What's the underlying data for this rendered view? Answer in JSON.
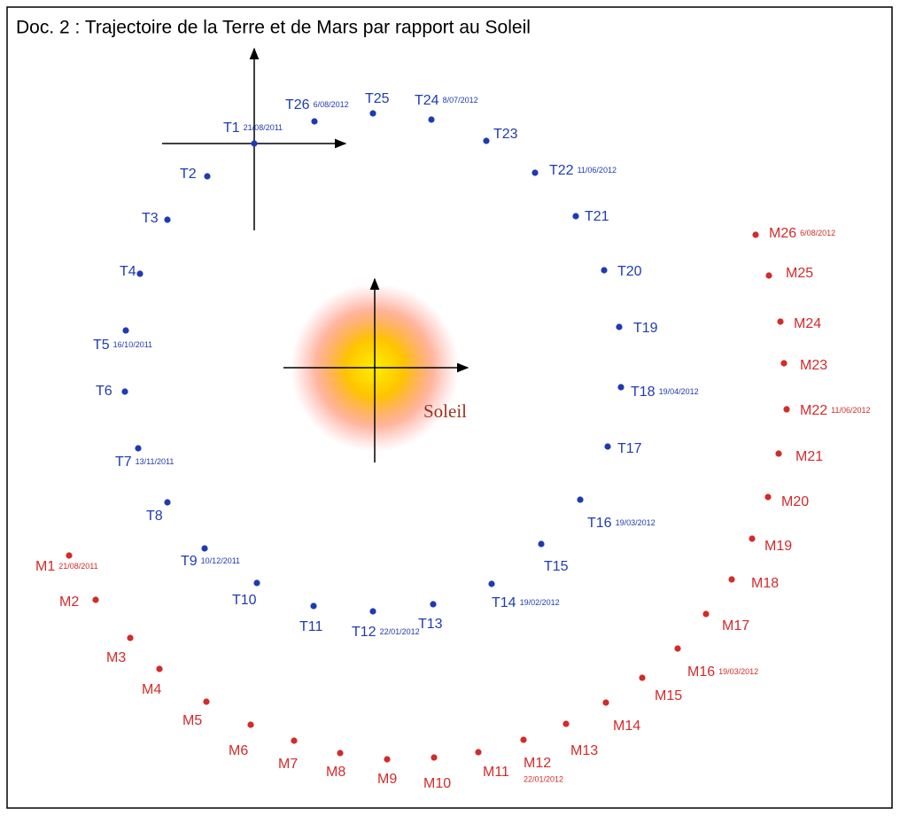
{
  "title": "Doc. 2 : Trajectoire de la Terre et de Mars par rapport au Soleil",
  "sun_label": "Soleil",
  "earth": [
    {
      "label": "T1",
      "date": "21/08/2011"
    },
    {
      "label": "T2"
    },
    {
      "label": "T3"
    },
    {
      "label": "T4"
    },
    {
      "label": "T5",
      "date": "16/10/2011"
    },
    {
      "label": "T6"
    },
    {
      "label": "T7",
      "date": "13/11/2011"
    },
    {
      "label": "T8"
    },
    {
      "label": "T9",
      "date": "10/12/2011"
    },
    {
      "label": "T10"
    },
    {
      "label": "T11"
    },
    {
      "label": "T12",
      "date": "22/01/2012"
    },
    {
      "label": "T13"
    },
    {
      "label": "T14",
      "date": "19/02/2012"
    },
    {
      "label": "T15"
    },
    {
      "label": "T16",
      "date": "19/03/2012"
    },
    {
      "label": "T17"
    },
    {
      "label": "T18",
      "date": "19/04/2012"
    },
    {
      "label": "T19"
    },
    {
      "label": "T20"
    },
    {
      "label": "T21"
    },
    {
      "label": "T22",
      "date": "11/06/2012"
    },
    {
      "label": "T23"
    },
    {
      "label": "T24",
      "date": "8/07/2012"
    },
    {
      "label": "T25"
    },
    {
      "label": "T26",
      "date": "6/08/2012"
    }
  ],
  "mars": [
    {
      "label": "M1",
      "date": "21/08/2011"
    },
    {
      "label": "M2"
    },
    {
      "label": "M3"
    },
    {
      "label": "M4"
    },
    {
      "label": "M5"
    },
    {
      "label": "M6"
    },
    {
      "label": "M7"
    },
    {
      "label": "M8"
    },
    {
      "label": "M9"
    },
    {
      "label": "M10"
    },
    {
      "label": "M11"
    },
    {
      "label": "M12",
      "date": "22/01/2012"
    },
    {
      "label": "M13"
    },
    {
      "label": "M14"
    },
    {
      "label": "M15"
    },
    {
      "label": "M16",
      "date": "19/03/2012"
    },
    {
      "label": "M17"
    },
    {
      "label": "M18"
    },
    {
      "label": "M19"
    },
    {
      "label": "M20"
    },
    {
      "label": "M21"
    },
    {
      "label": "M22",
      "date": "11/06/2012"
    },
    {
      "label": "M23"
    },
    {
      "label": "M24"
    },
    {
      "label": "M25"
    },
    {
      "label": "M26",
      "date": "6/08/2012"
    }
  ]
}
